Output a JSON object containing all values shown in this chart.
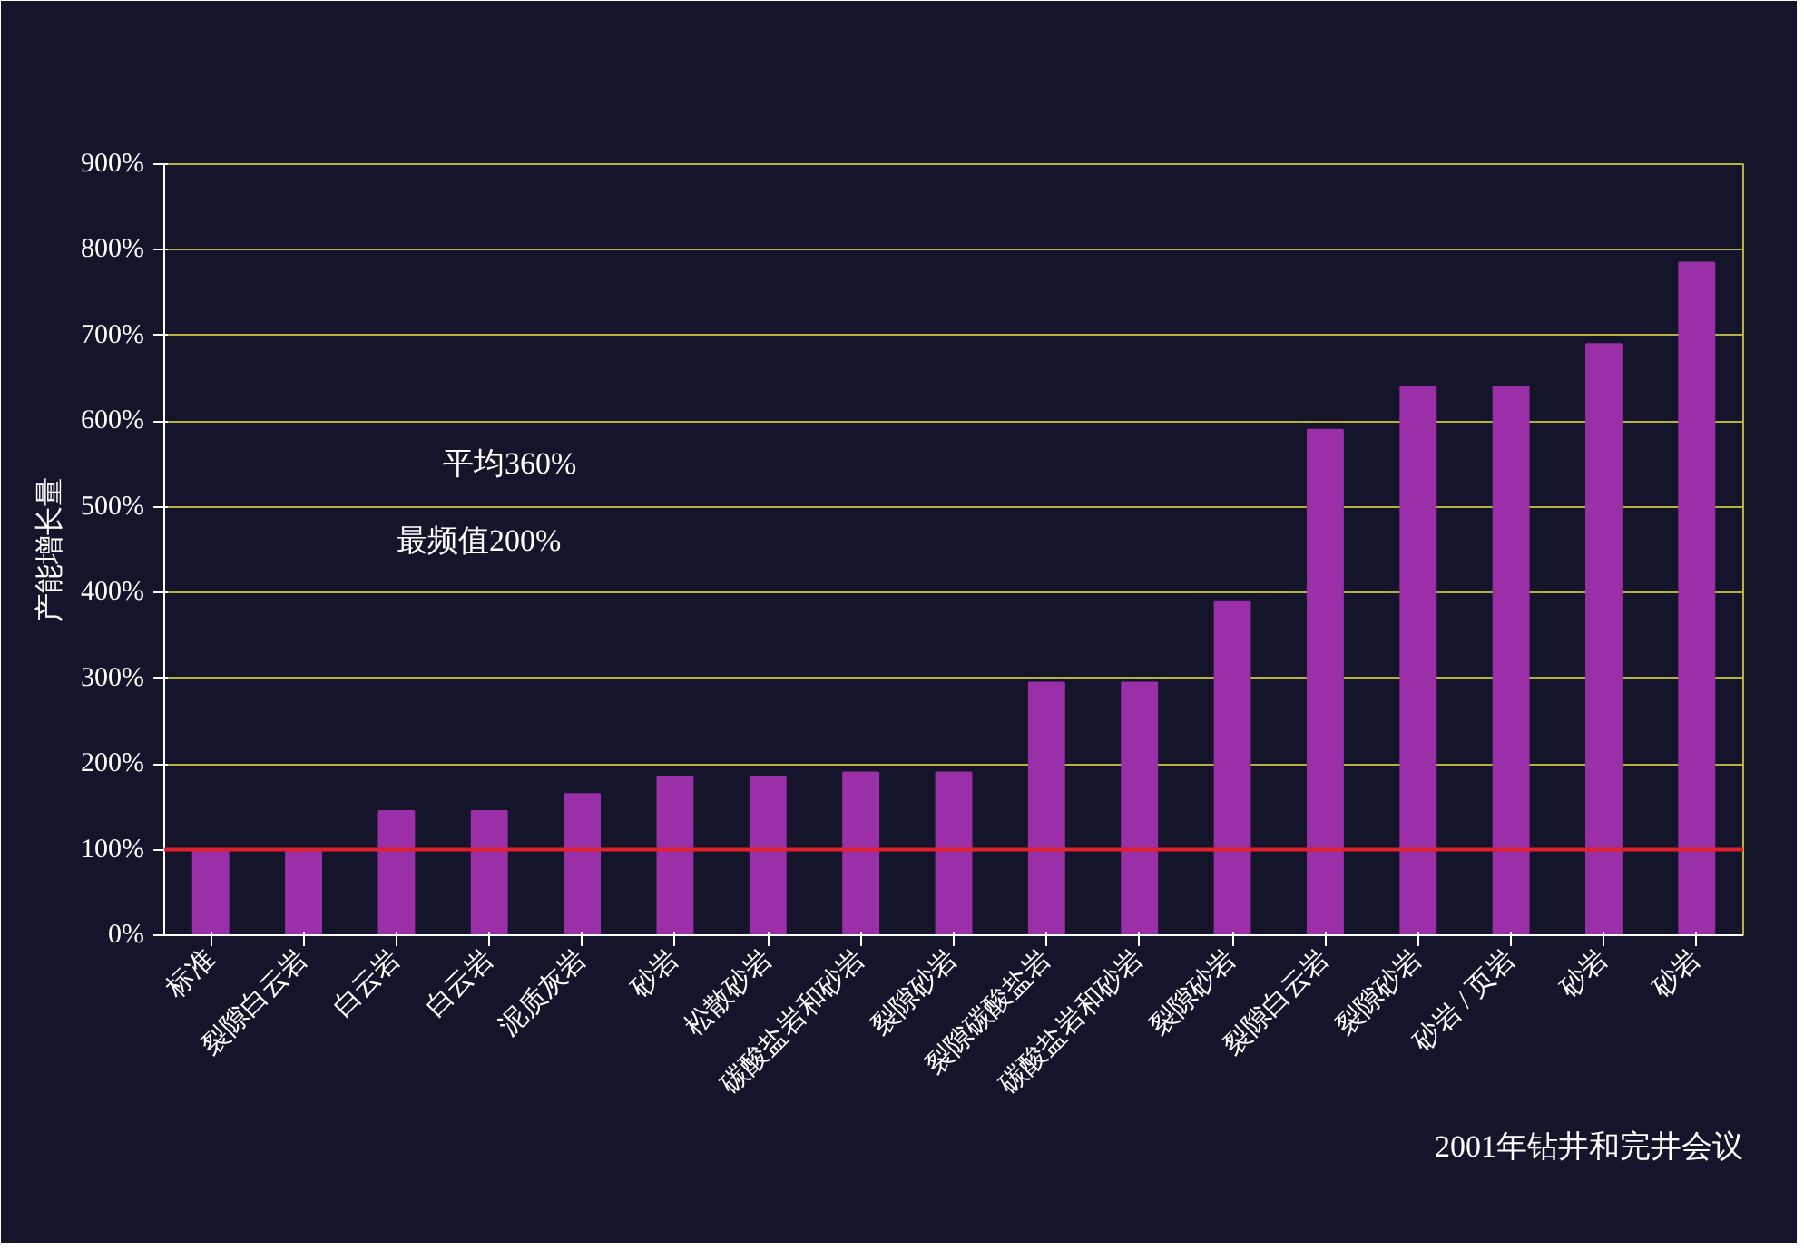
{
  "chart_data": {
    "type": "bar",
    "ylabel": "产能增长量",
    "categories": [
      "标准",
      "裂隙白云岩",
      "白云岩",
      "白云岩",
      "泥质灰岩",
      "砂岩",
      "松散砂岩",
      "碳酸盐岩和砂岩",
      "裂隙砂岩",
      "裂隙碳酸盐岩",
      "碳酸盐岩和砂岩",
      "裂隙砂岩",
      "裂隙白云岩",
      "裂隙砂岩",
      "砂岩 / 页岩",
      "砂岩",
      "砂岩"
    ],
    "values": [
      100,
      100,
      145,
      145,
      165,
      185,
      185,
      190,
      190,
      295,
      295,
      390,
      590,
      640,
      640,
      690,
      785
    ],
    "color": "#9a2fa8",
    "ylim": [
      0,
      900
    ],
    "yticks": [
      {
        "value": 0,
        "label": "0%"
      },
      {
        "value": 100,
        "label": "100%"
      },
      {
        "value": 200,
        "label": "200%"
      },
      {
        "value": 300,
        "label": "300%"
      },
      {
        "value": 400,
        "label": "400%"
      },
      {
        "value": 500,
        "label": "500%"
      },
      {
        "value": 600,
        "label": "600%"
      },
      {
        "value": 700,
        "label": "700%"
      },
      {
        "value": 800,
        "label": "800%"
      },
      {
        "value": 900,
        "label": "900%"
      }
    ],
    "grid": "y",
    "ref_lines": [
      {
        "axis": "y",
        "value": 100,
        "color": "#e0202a"
      }
    ],
    "annotations": [
      "平均360%",
      "最频值200%",
      "2001年钻井和完井会议"
    ]
  }
}
